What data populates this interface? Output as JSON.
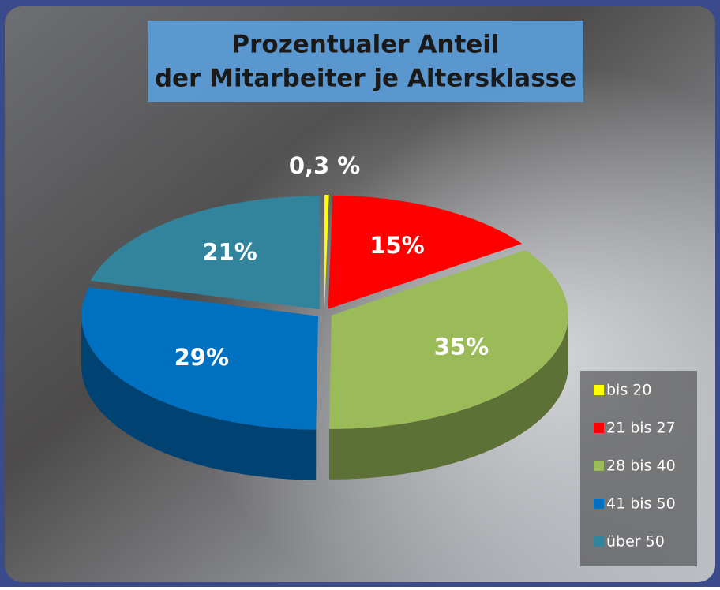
{
  "chart_data": {
    "type": "pie",
    "title": [
      "Prozentualer Anteil",
      "der Mitarbeiter je Altersklasse"
    ],
    "categories": [
      "bis 20",
      "21 bis 27",
      "28 bis 40",
      "41 bis 50",
      "über 50"
    ],
    "values": [
      0.3,
      15,
      35,
      29,
      21
    ],
    "value_labels": [
      "0,3 %",
      "15%",
      "35%",
      "29%",
      "21%"
    ],
    "colors": [
      "#ffff00",
      "#ff0000",
      "#9bbb59",
      "#0070c0",
      "#31849b"
    ],
    "legend": "right"
  }
}
